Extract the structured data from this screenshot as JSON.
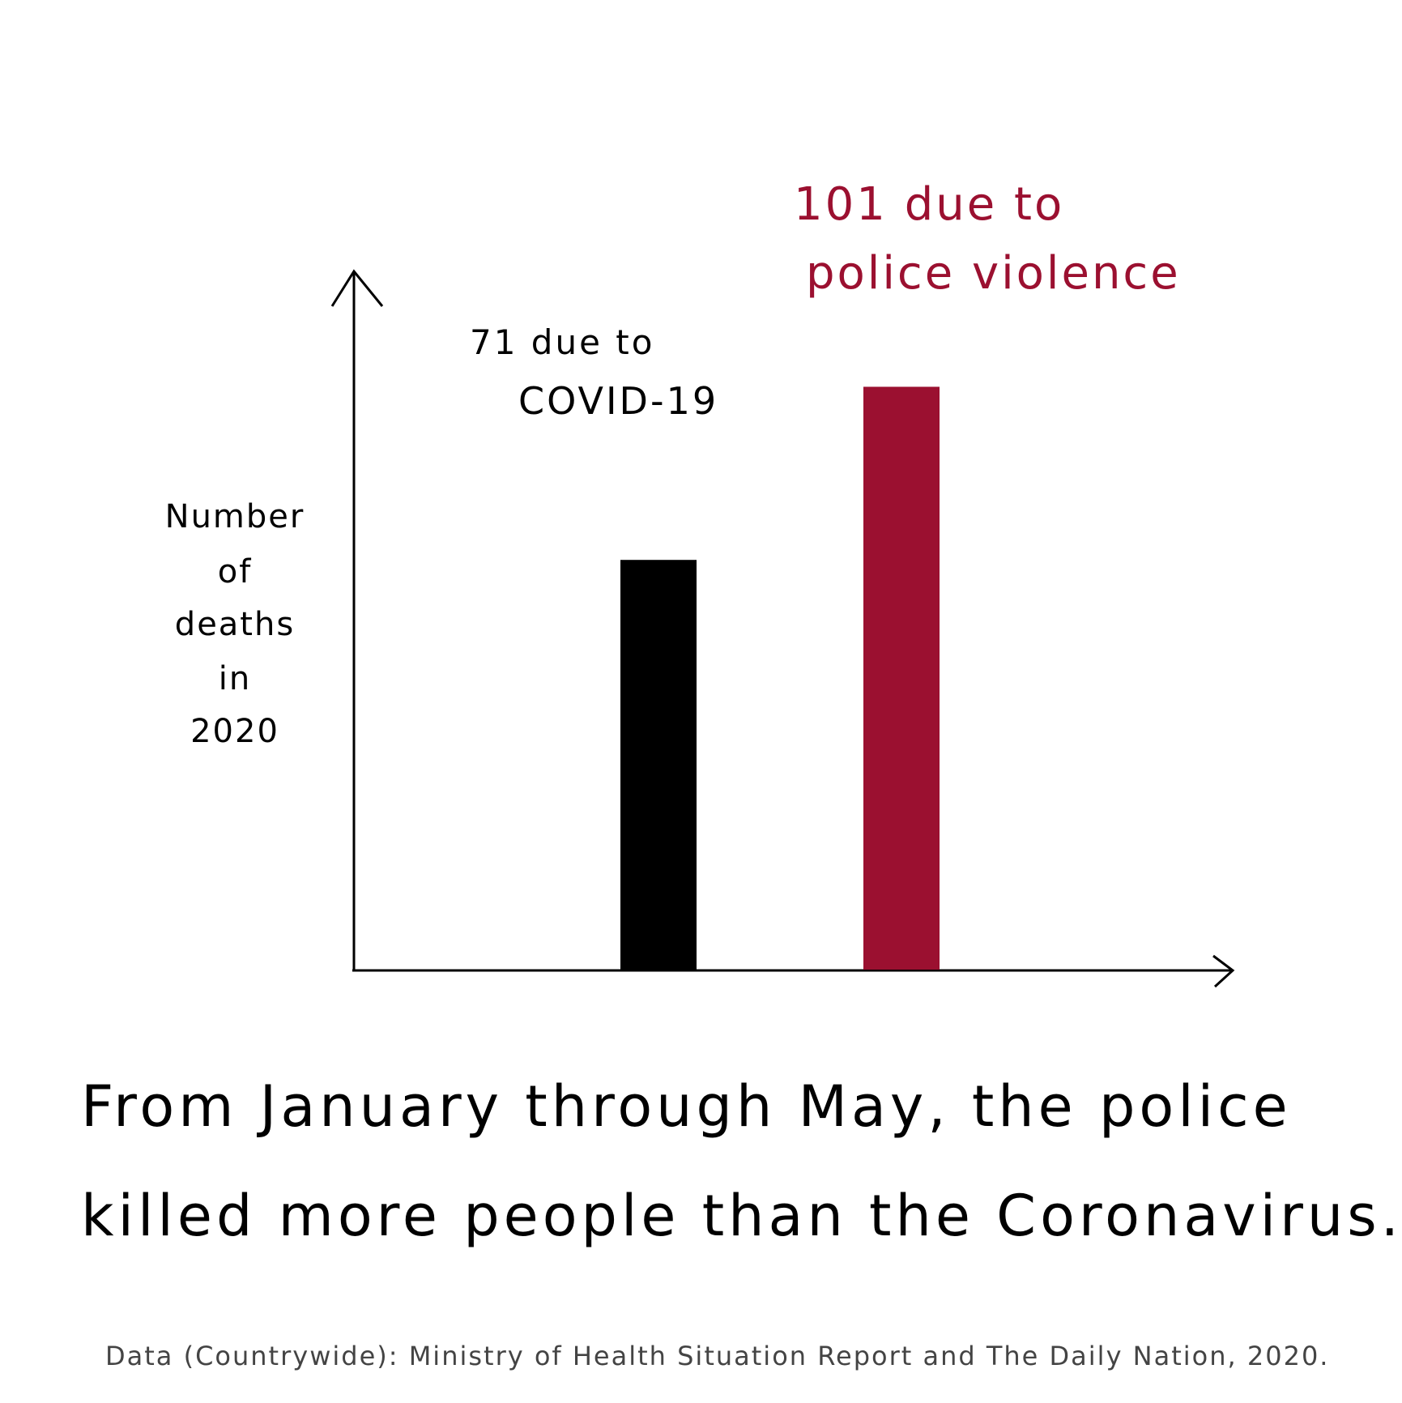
{
  "colors": {
    "covid": "#000000",
    "police": "#9b1030",
    "text": "#000000",
    "source": "#444444"
  },
  "chart_data": {
    "type": "bar",
    "categories": [
      "COVID-19",
      "police violence"
    ],
    "values": [
      71,
      101
    ],
    "ylim": [
      0,
      121
    ],
    "ylabel_lines": [
      "Number",
      "of",
      "deaths",
      "in",
      "2020"
    ],
    "xlabel": "",
    "grid": false,
    "legend": "none",
    "data_labels": [
      {
        "line1": "71  due to",
        "line2": "COVID-19"
      },
      {
        "line1": "101 due to",
        "line2": "police violence"
      }
    ]
  },
  "caption": {
    "line1": "From January through May, the police",
    "line2": "killed more people than the Coronavirus."
  },
  "source": "Data (Countrywide): Ministry of Health Situation Report and The Daily Nation, 2020."
}
